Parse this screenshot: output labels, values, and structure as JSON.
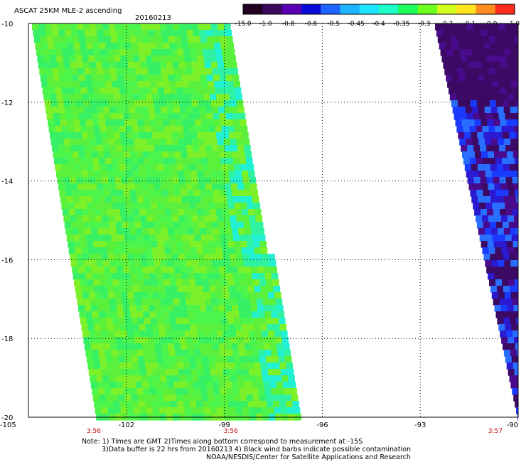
{
  "header": {
    "title": "ASCAT 25KM MLE-2 ascending",
    "date": "20160213"
  },
  "colorbar": {
    "colors": [
      "#200020",
      "#3a0a5e",
      "#5a00b4",
      "#0a0ad8",
      "#1e64ff",
      "#1eb4ff",
      "#1ee6ff",
      "#1effc8",
      "#1eff5a",
      "#6eff1e",
      "#d2ff1e",
      "#ffe61e",
      "#ff8c1e",
      "#ff2d1e"
    ],
    "labels": [
      "-15.0",
      "-1.0",
      "-0.8",
      "-0.6",
      "-0.5",
      "-0.45",
      "-0.4",
      "-0.35",
      "-0.3",
      "-0.2",
      "-0.1",
      "0.0",
      "1.0"
    ]
  },
  "axes": {
    "x_ticks": [
      "-105",
      "-102",
      "-99",
      "-96",
      "-93",
      "-90"
    ],
    "y_ticks": [
      "-10",
      "-12",
      "-14",
      "-16",
      "-18",
      "-20"
    ],
    "pass_times": [
      "3:56",
      "3:56",
      "3:57"
    ]
  },
  "map": {
    "lon_range": [
      -105,
      -90
    ],
    "lat_range": [
      -20,
      -10
    ],
    "swath_left": {
      "description_colors": [
        "#4cf54c",
        "#38f064",
        "#5af03c",
        "#7cf028",
        "#2ef2a0",
        "#22f0d2"
      ]
    },
    "swath_right": {
      "description_colors": [
        "#3c0a64",
        "#4a0a8c",
        "#2a1ad2",
        "#1a3aff",
        "#2a6eff",
        "#1ab4ff"
      ]
    }
  },
  "notes": {
    "line1": "Note: 1) Times are GMT 2)Times along bottom correspond to measurement at -15S",
    "line2": "3)Data buffer is 22 hrs from 20160213 4) Black wind barbs indicate possible contamination",
    "line3": "NOAA/NESDIS/Center for Satellite Applications and Research"
  }
}
